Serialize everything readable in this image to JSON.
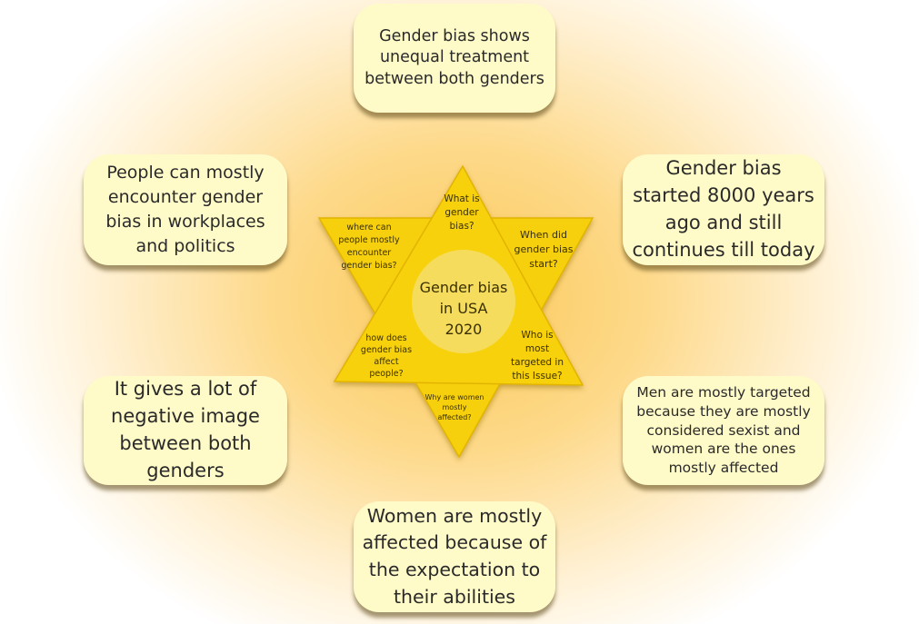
{
  "center": {
    "lines": [
      "Gender bias",
      "in USA",
      "2020"
    ]
  },
  "questions": {
    "top": [
      "What is",
      "gender",
      "bias?"
    ],
    "top_right": [
      "When did",
      "gender bias",
      "start?"
    ],
    "bottom_right": [
      "Who is",
      "most",
      "targeted in",
      "this Issue?"
    ],
    "bottom": [
      "Why are women",
      "mostly",
      "affected?"
    ],
    "bottom_left": [
      "how does",
      "gender bias",
      "affect",
      "people?"
    ],
    "top_left": [
      "where can",
      "people mostly",
      "encounter",
      "gender bias?"
    ]
  },
  "answers": {
    "top": "Gender bias shows unequal treatment between both genders",
    "top_left": "People can mostly encounter gender bias in workplaces and politics",
    "top_right": "Gender bias started 8000 years ago and still continues till today",
    "bottom_left": "It gives a lot of negative image between both genders",
    "bottom_right": "Men are mostly targeted because they are mostly considered sexist and women are the ones mostly affected",
    "bottom": "Women are mostly affected because of the expectation to their abilities"
  },
  "colors": {
    "star_fill": "#f6cf0c",
    "star_stroke": "#e2b400",
    "center_circle": "#f6dc5c",
    "card_fill": "#fffbc8"
  }
}
